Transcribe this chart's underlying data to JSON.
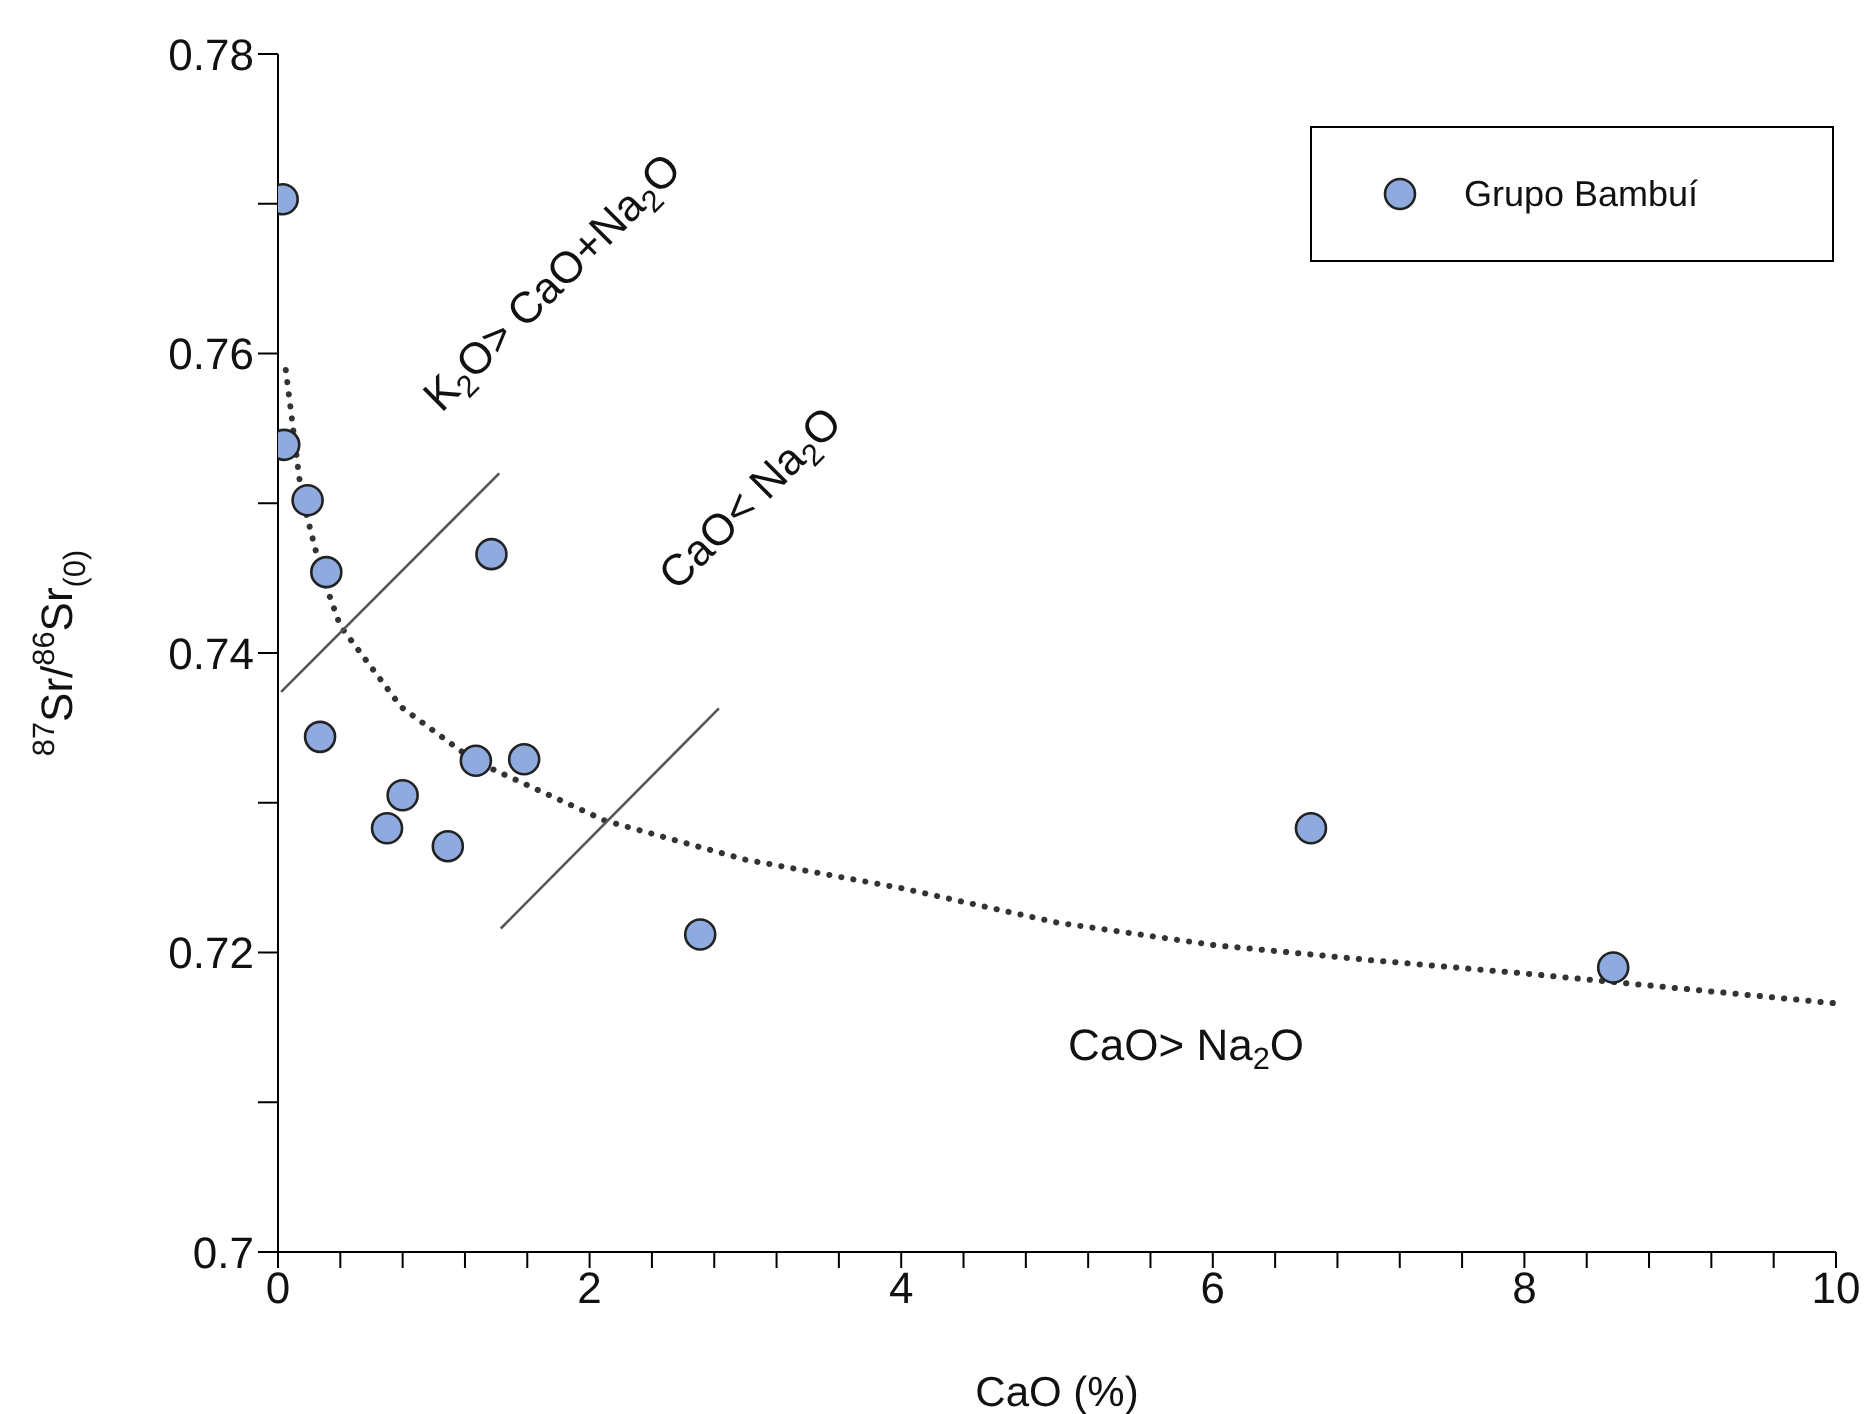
{
  "chart_data": {
    "type": "scatter",
    "ylabel": "$^{87}$Sr/$^{86}$Sr$_{(0)}$",
    "xlabel": "CaO (%)",
    "xlim": [
      0,
      10
    ],
    "xticks": [
      0,
      {
        "value": 0.4,
        "label": null
      },
      {
        "value": 0.8,
        "label": null
      },
      {
        "value": 1.2,
        "label": null
      },
      {
        "value": 1.6,
        "label": null
      },
      2,
      {
        "value": 2.4,
        "label": null
      },
      {
        "value": 2.8,
        "label": null
      },
      {
        "value": 3.2,
        "label": null
      },
      {
        "value": 3.6,
        "label": null
      },
      4,
      {
        "value": 4.4,
        "label": null
      },
      {
        "value": 4.8,
        "label": null
      },
      {
        "value": 5.2,
        "label": null
      },
      {
        "value": 5.6,
        "label": null
      },
      6,
      {
        "value": 6.4,
        "label": null
      },
      {
        "value": 6.8,
        "label": null
      },
      {
        "value": 7.2,
        "label": null
      },
      {
        "value": 7.6,
        "label": null
      },
      8,
      {
        "value": 8.4,
        "label": null
      },
      {
        "value": 8.8,
        "label": null
      },
      {
        "value": 9.2,
        "label": null
      },
      {
        "value": 9.6,
        "label": null
      },
      10
    ],
    "ylim": [
      0.7,
      0.78
    ],
    "yticks": [
      {
        "value": 0.7,
        "label": "0.7"
      },
      {
        "value": 0.71,
        "label": null
      },
      0.72,
      {
        "value": 0.73,
        "label": null
      },
      0.74,
      {
        "value": 0.75,
        "label": null
      },
      0.76,
      {
        "value": 0.77,
        "label": null
      },
      0.78
    ],
    "legend": "top right",
    "marker": "circle",
    "series": [
      {
        "name": "Grupo Bambuí",
        "color": "#8eaade",
        "x": [
          0.03,
          0.04,
          0.19,
          0.31,
          1.37,
          0.27,
          1.27,
          1.58,
          0.8,
          0.7,
          1.09,
          2.71,
          6.63,
          8.57
        ],
        "values": [
          0.7703,
          0.7539,
          0.7502,
          0.7454,
          0.7466,
          0.7344,
          0.7328,
          0.7329,
          0.7305,
          0.7283,
          0.7271,
          0.7212,
          0.7283,
          0.719
        ]
      },
      {
        "type": "line",
        "color": "#333333",
        "marker": "none",
        "line_style": "dotted",
        "x": [
          0.05,
          0.15,
          0.28,
          0.4,
          0.79,
          1.26,
          2.1,
          3.0,
          4.0,
          5.0,
          6.0,
          7.0,
          8.0,
          9.0,
          10.0
        ],
        "values": [
          0.7589,
          0.7506,
          0.7453,
          0.7418,
          0.7364,
          0.7328,
          0.7288,
          0.7262,
          0.7243,
          0.722,
          0.7205,
          0.7195,
          0.7186,
          0.7176,
          0.7166
        ]
      },
      {
        "type": "line",
        "color": "#555555",
        "marker": "none",
        "line_style": "solid",
        "x": [
          0.02,
          1.42
        ],
        "values": [
          0.7374,
          0.752
        ]
      },
      {
        "type": "line",
        "color": "#555555",
        "marker": "none",
        "line_style": "solid",
        "x": [
          1.43,
          2.83
        ],
        "values": [
          0.7216,
          0.7363
        ]
      }
    ],
    "annotations": [
      "K$_{2}$O> CaO+Na$_{2}$O",
      "CaO< Na$_{2}$O",
      "CaO> Na$_{2}$O"
    ]
  }
}
